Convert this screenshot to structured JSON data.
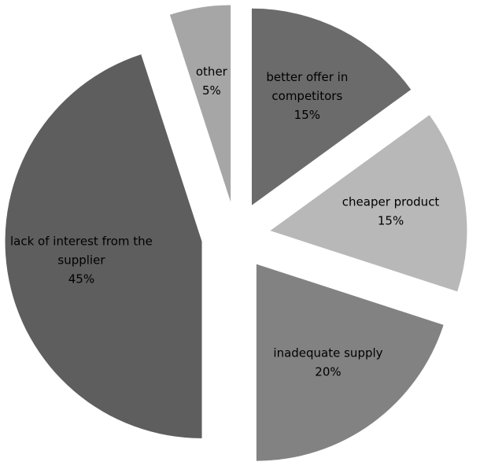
{
  "chart_data": {
    "type": "pie",
    "title": "",
    "exploded": true,
    "slices": [
      {
        "label": "better offer in competitors",
        "label_lines": [
          "better offer in",
          "competitors"
        ],
        "value": 15,
        "value_label": "15%",
        "color": "#6b6b6b"
      },
      {
        "label": "cheaper product",
        "label_lines": [
          "cheaper product"
        ],
        "value": 15,
        "value_label": "15%",
        "color": "#b8b8b8"
      },
      {
        "label": "inadequate supply",
        "label_lines": [
          "inadequate supply"
        ],
        "value": 20,
        "value_label": "20%",
        "color": "#828282"
      },
      {
        "label": "lack of interest from the supplier",
        "label_lines": [
          "lack of interest from the",
          "supplier"
        ],
        "value": 45,
        "value_label": "45%",
        "color": "#5e5e5e"
      },
      {
        "label": "other",
        "label_lines": [
          "other"
        ],
        "value": 5,
        "value_label": "5%",
        "color": "#a6a6a6"
      }
    ]
  }
}
